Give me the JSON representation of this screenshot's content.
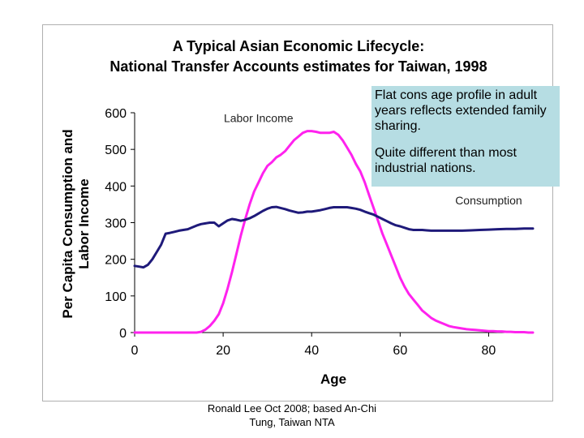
{
  "footer": {
    "credit": "Ronald Lee Oct 2008; based An-Chi Tung, Taiwan NTA"
  },
  "note": {
    "line1": "Flat cons age profile in adult years reflects extended family sharing.",
    "line2": "Quite different than most industrial nations."
  },
  "chart_data": {
    "type": "line",
    "title": "A Typical Asian Economic Lifecycle:",
    "subtitle": "National Transfer Accounts estimates for Taiwan, 1998",
    "xlabel": "Age",
    "ylabel_line1": "Per Capita Consumption and",
    "ylabel_line2": "Labor Income",
    "xlim": [
      0,
      90
    ],
    "ylim": [
      0,
      600
    ],
    "xticks": [
      0,
      20,
      40,
      60,
      80
    ],
    "yticks": [
      0,
      100,
      200,
      300,
      400,
      500,
      600
    ],
    "grid": false,
    "colors": {
      "consumption": "#1f1a7a",
      "labor_income": "#ff22ee",
      "axis": "#000000"
    },
    "series": [
      {
        "name": "Labor Income",
        "key": "labor_income",
        "x": [
          0,
          2,
          4,
          6,
          8,
          10,
          12,
          14,
          15,
          16,
          17,
          18,
          19,
          20,
          21,
          22,
          23,
          24,
          25,
          26,
          27,
          28,
          29,
          30,
          31,
          32,
          33,
          34,
          35,
          36,
          37,
          38,
          39,
          40,
          41,
          42,
          43,
          44,
          45,
          46,
          47,
          48,
          49,
          50,
          51,
          52,
          53,
          54,
          55,
          56,
          57,
          58,
          59,
          60,
          61,
          62,
          63,
          64,
          65,
          66,
          67,
          68,
          69,
          70,
          71,
          72,
          73,
          74,
          75,
          76,
          77,
          78,
          79,
          80,
          81,
          82,
          83,
          84,
          85,
          86,
          87,
          88,
          89,
          90
        ],
        "values": [
          0,
          0,
          0,
          0,
          0,
          0,
          0,
          0,
          2,
          8,
          18,
          32,
          50,
          80,
          120,
          165,
          215,
          265,
          310,
          350,
          385,
          410,
          435,
          455,
          465,
          478,
          485,
          495,
          510,
          525,
          535,
          545,
          550,
          550,
          548,
          545,
          545,
          545,
          548,
          540,
          525,
          505,
          485,
          460,
          440,
          410,
          375,
          340,
          305,
          270,
          240,
          210,
          180,
          150,
          125,
          105,
          90,
          75,
          60,
          50,
          40,
          33,
          28,
          23,
          18,
          15,
          13,
          11,
          9,
          8,
          7,
          6,
          5,
          4,
          4,
          3,
          3,
          2,
          2,
          1,
          1,
          1,
          0,
          0
        ]
      },
      {
        "name": "Consumption",
        "key": "consumption",
        "x": [
          0,
          1,
          2,
          3,
          4,
          5,
          6,
          7,
          8,
          9,
          10,
          11,
          12,
          13,
          14,
          15,
          16,
          17,
          18,
          19,
          20,
          21,
          22,
          23,
          24,
          25,
          26,
          27,
          28,
          29,
          30,
          31,
          32,
          33,
          34,
          35,
          36,
          37,
          38,
          39,
          40,
          41,
          42,
          43,
          44,
          45,
          46,
          47,
          48,
          49,
          50,
          51,
          52,
          53,
          54,
          55,
          56,
          57,
          58,
          59,
          60,
          61,
          62,
          63,
          64,
          65,
          66,
          67,
          68,
          70,
          72,
          74,
          76,
          78,
          80,
          82,
          84,
          86,
          88,
          90
        ],
        "values": [
          182,
          180,
          178,
          185,
          200,
          220,
          240,
          270,
          272,
          275,
          278,
          280,
          282,
          287,
          292,
          296,
          298,
          300,
          300,
          290,
          298,
          306,
          310,
          308,
          305,
          308,
          312,
          318,
          325,
          332,
          338,
          342,
          343,
          340,
          337,
          333,
          330,
          327,
          328,
          330,
          330,
          332,
          334,
          337,
          340,
          342,
          342,
          342,
          342,
          340,
          338,
          335,
          330,
          326,
          322,
          316,
          310,
          304,
          298,
          293,
          290,
          286,
          282,
          280,
          280,
          280,
          279,
          278,
          278,
          278,
          278,
          278,
          279,
          280,
          281,
          282,
          283,
          283,
          284,
          284
        ]
      }
    ],
    "labels": [
      {
        "text": "Labor Income",
        "x": 28,
        "y": 575
      },
      {
        "text": "Consumption",
        "x": 80,
        "y": 350
      }
    ]
  }
}
